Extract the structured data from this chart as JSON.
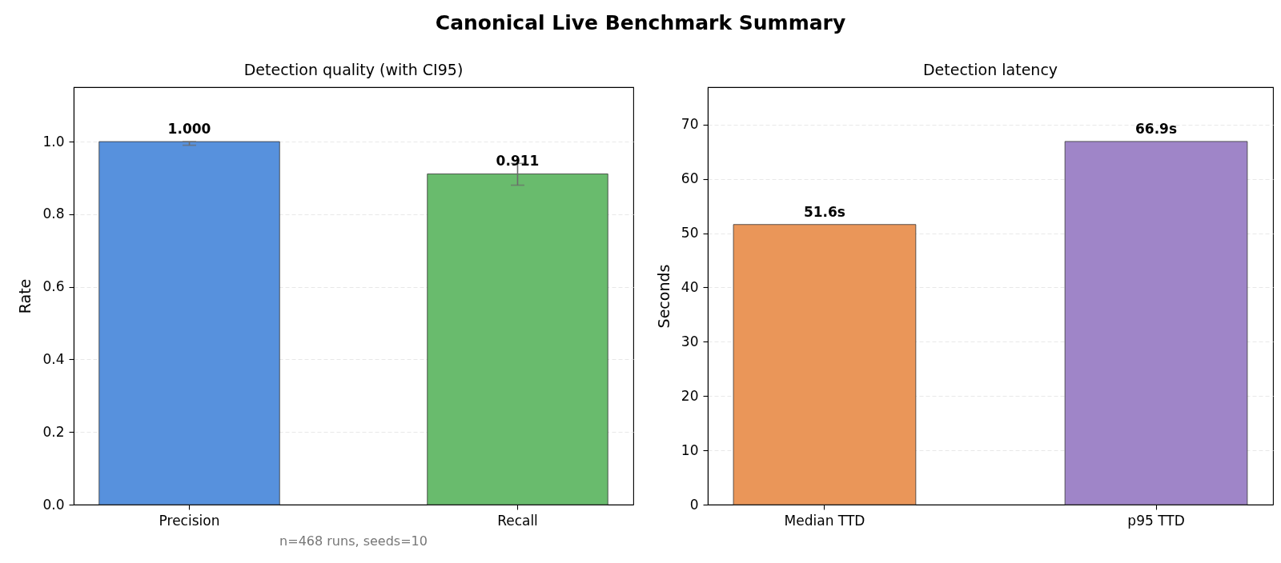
{
  "chart_data": [
    {
      "type": "other",
      "title": "Canonical Live Benchmark Summary"
    },
    {
      "type": "bar",
      "title": "Detection quality (with CI95)",
      "ylabel": "Rate",
      "categories": [
        "Precision",
        "Recall"
      ],
      "values": [
        1.0,
        0.911
      ],
      "colors": [
        "#5791dd",
        "#69bb6d"
      ],
      "errors": [
        [
          0.99,
          1.0
        ],
        [
          0.88,
          0.94
        ]
      ],
      "value_labels": [
        "1.000",
        "0.911"
      ],
      "annotations": [
        "n=468 runs, seeds=10"
      ],
      "ylim": [
        0,
        1.15
      ],
      "yticks": [
        {
          "value": 0,
          "label": "0.0"
        },
        0.2,
        0.4,
        0.6,
        0.8,
        {
          "value": 1,
          "label": "1.0"
        }
      ],
      "grid": "y"
    },
    {
      "type": "bar",
      "title": "Detection latency",
      "ylabel": "Seconds",
      "categories": [
        "Median TTD",
        "p95 TTD"
      ],
      "values": [
        51.6,
        66.9
      ],
      "colors": [
        "#ea9659",
        "#9f85c8"
      ],
      "value_labels": [
        "51.6s",
        "66.9s"
      ],
      "ylim": [
        0,
        76.9
      ],
      "yticks": [
        0,
        10,
        20,
        30,
        40,
        50,
        60,
        70
      ],
      "grid": "y"
    }
  ]
}
